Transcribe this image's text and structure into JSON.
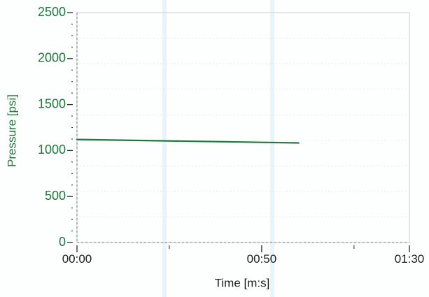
{
  "chart_data": {
    "type": "line",
    "title": "",
    "xlabel": "Time [m:s]",
    "ylabel": "Pressure [psi]",
    "xlim": [
      "00:00",
      "01:30"
    ],
    "ylim": [
      0,
      2500
    ],
    "x_ticks": [
      "00:00",
      "00:50",
      "01:30"
    ],
    "y_ticks": [
      0,
      500,
      1000,
      1500,
      2000,
      2500
    ],
    "series": [
      {
        "x": [
          "00:00",
          "01:00"
        ],
        "y": [
          1120,
          1083
        ],
        "color": "#1f7a3a"
      }
    ],
    "grid": false,
    "colors": {
      "pressure_axis": "#1f7a3a",
      "time_axis": "#1d1d1d"
    }
  }
}
